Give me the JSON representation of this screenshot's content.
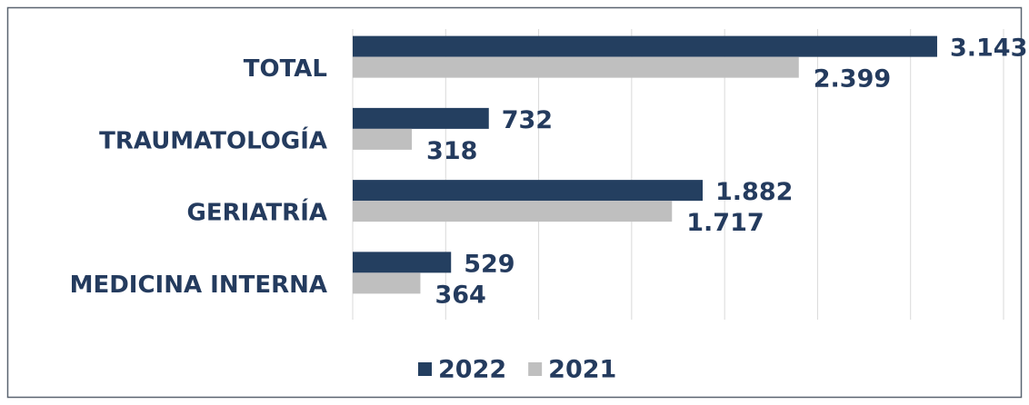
{
  "chart_data": {
    "type": "barh",
    "categories": [
      "TOTAL",
      "TRAUMATOLOGÍA",
      "GERIATRÍA",
      "MEDICINA INTERNA"
    ],
    "series": [
      {
        "name": "2022",
        "color": "#243f60",
        "values": [
          3143,
          732,
          1882,
          529
        ],
        "value_labels": [
          "3.143",
          "732",
          "1.882",
          "529"
        ]
      },
      {
        "name": "2021",
        "color": "#bfbfbf",
        "values": [
          2399,
          318,
          1717,
          364
        ],
        "value_labels": [
          "2.399",
          "318",
          "1.717",
          "364"
        ]
      }
    ],
    "xlim": [
      0,
      3500
    ],
    "xticks": [
      0,
      500,
      1000,
      1500,
      2000,
      2500,
      3000,
      3500
    ],
    "grid": true,
    "legend": "bottom"
  }
}
